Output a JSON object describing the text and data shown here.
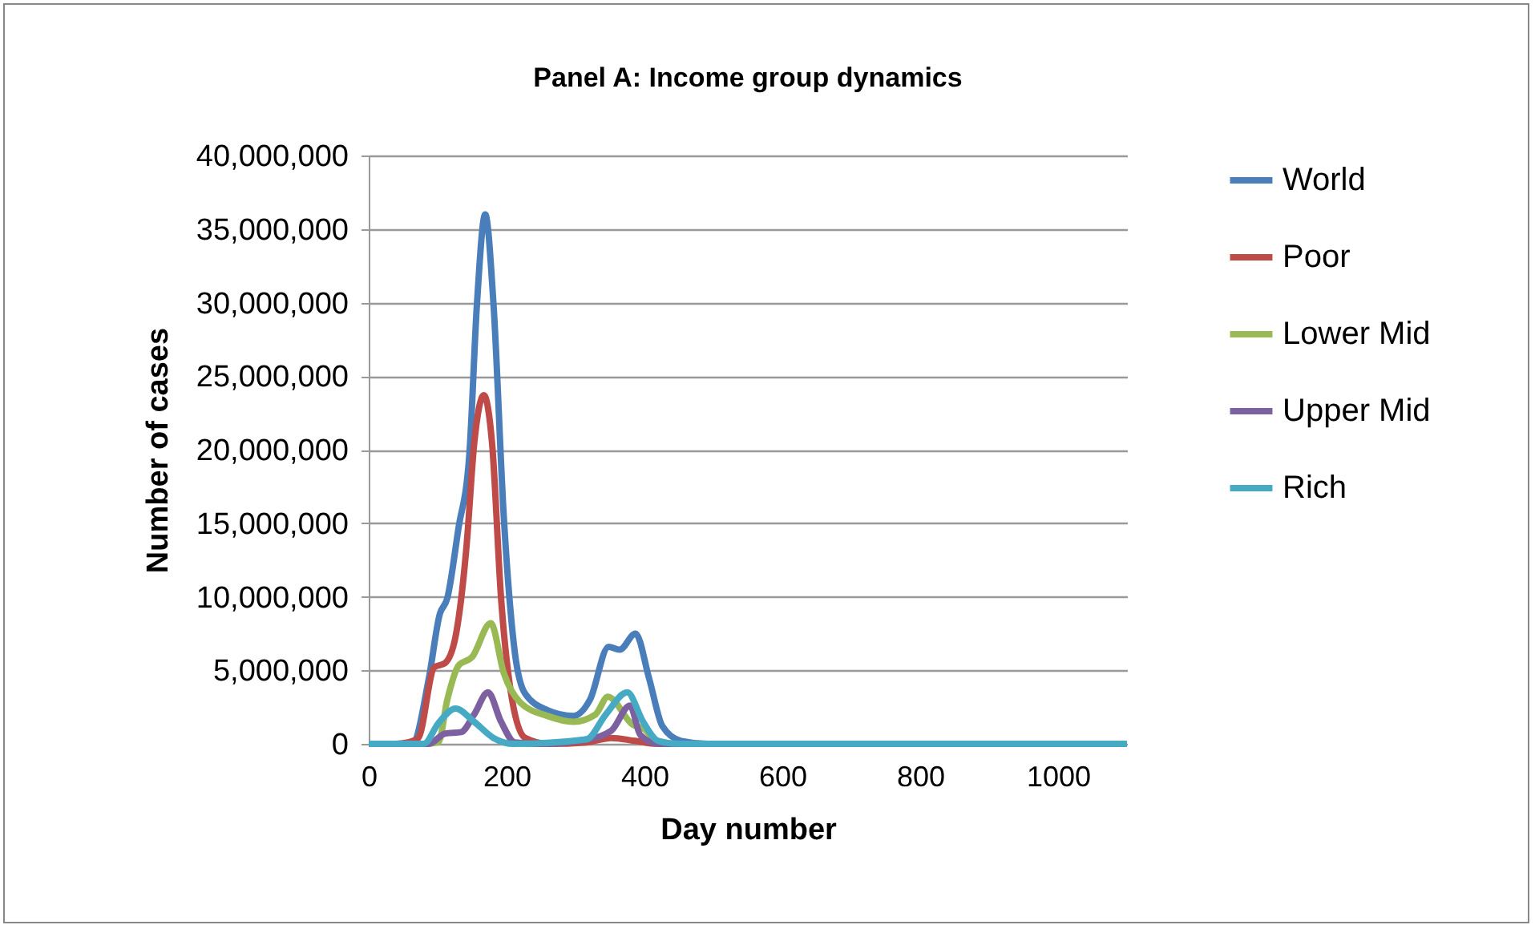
{
  "chart_data": {
    "type": "line",
    "title": "Panel A: Income group dynamics",
    "xlabel": "Day number",
    "ylabel": "Number of cases",
    "xlim": [
      0,
      1100
    ],
    "xticks": [
      0,
      200,
      400,
      600,
      800,
      1000
    ],
    "ylim": [
      0,
      40000000
    ],
    "yticks": [
      0,
      {
        "value": 5000000,
        "label": "5,000,000"
      },
      {
        "value": 10000000,
        "label": "10,000,000"
      },
      {
        "value": 15000000,
        "label": "15,000,000"
      },
      {
        "value": 20000000,
        "label": "20,000,000"
      },
      {
        "value": 25000000,
        "label": "25,000,000"
      },
      {
        "value": 30000000,
        "label": "30,000,000"
      },
      {
        "value": 35000000,
        "label": "35,000,000"
      },
      {
        "value": 40000000,
        "label": "40,000,000"
      }
    ],
    "grid": "y",
    "legend": "right",
    "marker": "none",
    "line_style": "solid",
    "series": [
      {
        "name": "World",
        "color": "#4a7ebb",
        "x": [
          0,
          40,
          64,
          87,
          103,
          114,
          130,
          146,
          157,
          169,
          181,
          196,
          212,
          227,
          259,
          297,
          321,
          348,
          364,
          387,
          407,
          426,
          453,
          492,
          600
        ],
        "values": [
          0,
          0,
          100000,
          4400000,
          8800000,
          9900000,
          14600000,
          19700000,
          29900000,
          36000000,
          29900000,
          15400000,
          6200000,
          3400000,
          2300000,
          1900000,
          3000000,
          6600000,
          6400000,
          7500000,
          4400000,
          1200000,
          200000,
          0,
          0
        ]
      },
      {
        "name": "Poor",
        "color": "#be4b48",
        "x": [
          0,
          40,
          57,
          72,
          95,
          111,
          126,
          142,
          153,
          167,
          179,
          192,
          208,
          227,
          260,
          316,
          352,
          386,
          418,
          600
        ],
        "values": [
          0,
          0,
          100000,
          400000,
          5200000,
          5500000,
          7300000,
          13500000,
          20400000,
          23700000,
          20400000,
          9900000,
          3000000,
          400000,
          0,
          100000,
          400000,
          200000,
          0,
          0
        ]
      },
      {
        "name": "Lower Mid",
        "color": "#98b954",
        "x": [
          0,
          80,
          101,
          114,
          130,
          150,
          177,
          196,
          220,
          259,
          297,
          329,
          347,
          383,
          400,
          420,
          600
        ],
        "values": [
          0,
          0,
          100000,
          3000000,
          5300000,
          5900000,
          8200000,
          4800000,
          2800000,
          1900000,
          1500000,
          2000000,
          3200000,
          1300000,
          1000000,
          0,
          0
        ]
      },
      {
        "name": "Upper Mid",
        "color": "#7d60a0",
        "x": [
          0,
          87,
          111,
          134,
          153,
          173,
          192,
          212,
          250,
          316,
          352,
          379,
          394,
          420,
          600
        ],
        "values": [
          0,
          0,
          700000,
          800000,
          2000000,
          3500000,
          1500000,
          100000,
          0,
          300000,
          900000,
          2600000,
          600000,
          0,
          0
        ]
      },
      {
        "name": "Rich",
        "color": "#46aac5",
        "x": [
          0,
          80,
          101,
          126,
          153,
          181,
          210,
          316,
          344,
          375,
          398,
          420,
          450,
          600,
          800,
          1000,
          1100
        ],
        "values": [
          0,
          0,
          1400000,
          2400000,
          1500000,
          400000,
          0,
          300000,
          2000000,
          3500000,
          1500000,
          200000,
          0,
          0,
          0,
          0,
          0
        ]
      }
    ]
  }
}
